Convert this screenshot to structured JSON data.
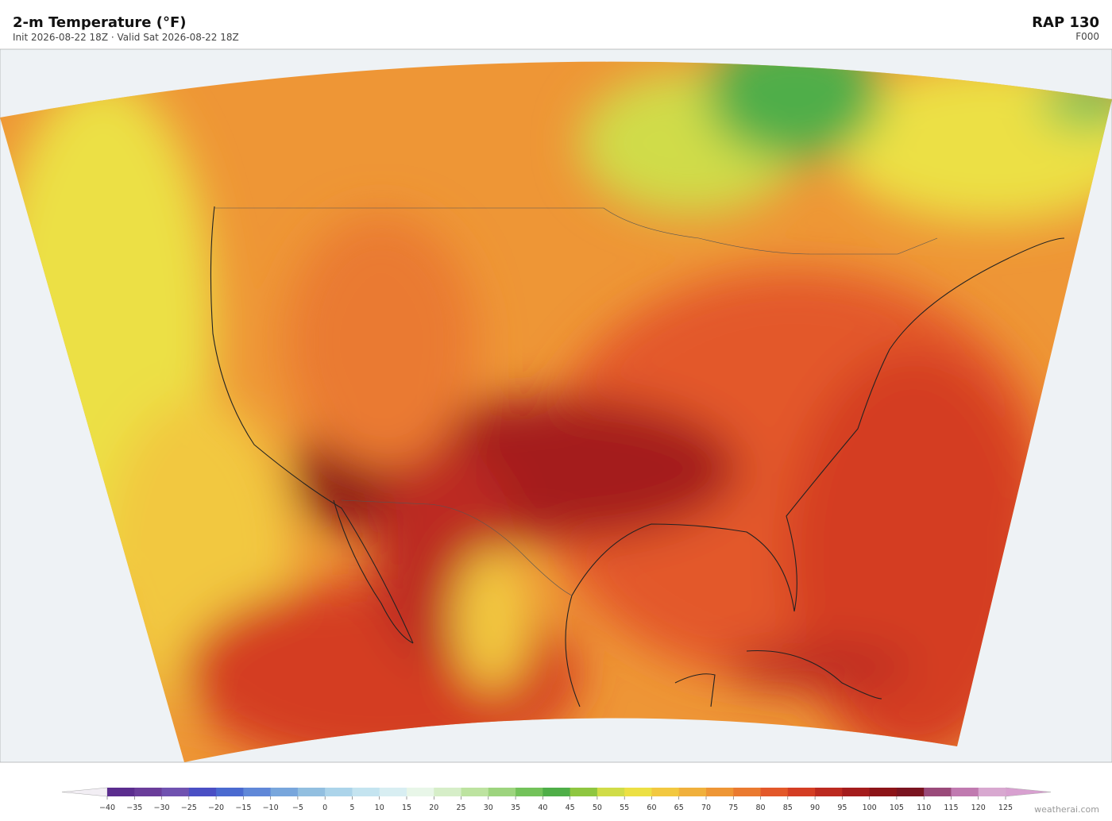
{
  "header": {
    "title": "2-m Temperature  (°F)",
    "subtitle": "Init 2026-08-22 18Z   ·   Valid Sat 2026-08-22 18Z",
    "model": "RAP  130",
    "forecast_hour": "F000"
  },
  "colorbar": {
    "ticks": [
      {
        "value": -40,
        "label": "−40"
      },
      {
        "value": -35,
        "label": "−35"
      },
      {
        "value": -30,
        "label": "−30"
      },
      {
        "value": -25,
        "label": "−25"
      },
      {
        "value": -20,
        "label": "−20"
      },
      {
        "value": -15,
        "label": "−15"
      },
      {
        "value": -10,
        "label": "−10"
      },
      {
        "value": -5,
        "label": "−5"
      },
      0,
      5,
      10,
      15,
      20,
      25,
      30,
      35,
      40,
      45,
      50,
      55,
      60,
      65,
      70,
      75,
      80,
      85,
      90,
      95,
      100,
      105,
      110,
      115,
      120,
      125
    ],
    "colors": [
      "#5b2d8e",
      "#6a3d9a",
      "#7052b0",
      "#4a4fc4",
      "#4a6ad0",
      "#6088d8",
      "#78a6dc",
      "#92bfe0",
      "#acd4ea",
      "#c4e4f0",
      "#d8eef2",
      "#e8f6e8",
      "#d6eec8",
      "#bde3a0",
      "#9dd47e",
      "#73c25a",
      "#4fae48",
      "#8ec640",
      "#d0dc48",
      "#ece044",
      "#f2c840",
      "#f0b03c",
      "#ee9636",
      "#ea7a30",
      "#e3582a",
      "#d43e24",
      "#bc2a20",
      "#a41c1c",
      "#8c1418",
      "#7a1420",
      "#9a4a7a",
      "#c07ab0",
      "#d8a8d0"
    ],
    "under_color": "#f2eef4",
    "over_color": "#d8a0d0"
  },
  "footer": {
    "credit": "weatherai.com"
  }
}
